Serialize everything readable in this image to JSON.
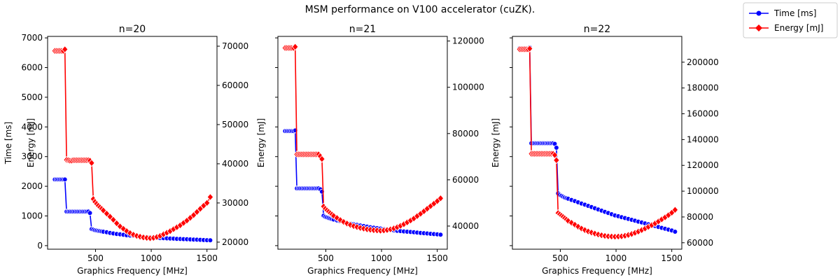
{
  "figure": {
    "suptitle": "MSM performance on V100 accelerator (cuZK).",
    "legend": {
      "placement": "top-right",
      "entries": [
        {
          "label": "Time [ms]",
          "color": "#0000ff",
          "marker": "circle"
        },
        {
          "label": "Energy [mJ]",
          "color": "#ff0000",
          "marker": "diamond"
        }
      ]
    }
  },
  "chart_data": [
    {
      "type": "line",
      "title": "n=20",
      "xlabel": "Graphics Frequency [MHz]",
      "ylabel_left": "Time [ms]",
      "ylabel_right": "Energy [mJ]",
      "xlim": [
        70,
        1590
      ],
      "xticks": [
        500,
        1000,
        1500
      ],
      "y_left": {
        "lim": [
          -120,
          7050
        ],
        "ticks": [
          0,
          1000,
          2000,
          3000,
          4000,
          5000,
          6000,
          7000
        ],
        "show_labels": true
      },
      "y_right": {
        "lim": [
          18200,
          72500
        ],
        "ticks": [
          20000,
          30000,
          40000,
          50000,
          60000,
          70000
        ],
        "show_labels": true
      },
      "series": [
        {
          "name": "Time [ms]",
          "axis": "left",
          "color": "#0000ff",
          "marker": "circle",
          "x": [
            135,
            150,
            165,
            180,
            195,
            210,
            225,
            240,
            255,
            270,
            285,
            300,
            315,
            330,
            345,
            360,
            375,
            390,
            405,
            420,
            435,
            450,
            465,
            480,
            495,
            510,
            525,
            540,
            555,
            570,
            600,
            630,
            660,
            690,
            720,
            750,
            780,
            810,
            840,
            870,
            900,
            930,
            960,
            990,
            1020,
            1050,
            1080,
            1110,
            1140,
            1170,
            1200,
            1230,
            1260,
            1290,
            1320,
            1350,
            1380,
            1410,
            1440,
            1470,
            1500,
            1530
          ],
          "y": [
            2230,
            2230,
            2230,
            2230,
            2230,
            2230,
            2230,
            1150,
            1150,
            1150,
            1150,
            1150,
            1150,
            1150,
            1150,
            1150,
            1150,
            1150,
            1150,
            1150,
            1150,
            1100,
            560,
            540,
            520,
            510,
            500,
            490,
            480,
            470,
            450,
            430,
            410,
            395,
            380,
            365,
            350,
            340,
            330,
            320,
            310,
            300,
            290,
            280,
            270,
            260,
            255,
            250,
            245,
            240,
            235,
            230,
            225,
            220,
            215,
            210,
            205,
            200,
            195,
            190,
            185,
            180
          ]
        },
        {
          "name": "Energy [mJ]",
          "axis": "right",
          "color": "#ff0000",
          "marker": "diamond",
          "x": [
            135,
            150,
            165,
            180,
            195,
            210,
            225,
            240,
            255,
            270,
            285,
            300,
            315,
            330,
            345,
            360,
            375,
            390,
            405,
            420,
            435,
            450,
            465,
            480,
            495,
            510,
            525,
            540,
            555,
            570,
            600,
            630,
            660,
            690,
            720,
            750,
            780,
            810,
            840,
            870,
            900,
            930,
            960,
            990,
            1020,
            1050,
            1080,
            1110,
            1140,
            1170,
            1200,
            1230,
            1260,
            1290,
            1320,
            1350,
            1380,
            1410,
            1440,
            1470,
            1500,
            1530
          ],
          "y": [
            68800,
            68800,
            68800,
            68800,
            68800,
            68800,
            69200,
            41000,
            40900,
            40800,
            40800,
            40900,
            40900,
            40900,
            40900,
            40900,
            40900,
            40900,
            40900,
            40900,
            40900,
            40800,
            40200,
            31000,
            30300,
            29800,
            29300,
            28900,
            28500,
            28100,
            27300,
            26500,
            25700,
            24800,
            24000,
            23400,
            22800,
            22300,
            21900,
            21600,
            21400,
            21200,
            21100,
            21000,
            21100,
            21300,
            21600,
            22000,
            22400,
            22800,
            23300,
            23800,
            24300,
            24900,
            25500,
            26200,
            26900,
            27700,
            28500,
            29300,
            30000,
            31500
          ]
        }
      ]
    },
    {
      "type": "line",
      "title": "n=21",
      "xlabel": "Graphics Frequency [MHz]",
      "ylabel_left": "",
      "ylabel_right": "Energy [mJ]",
      "xlim": [
        70,
        1590
      ],
      "xticks": [
        500,
        1000,
        1500
      ],
      "y_left": {
        "lim": [
          -120,
          7050
        ],
        "ticks": [
          0,
          1000,
          2000,
          3000,
          4000,
          5000,
          6000,
          7000
        ],
        "show_labels": false
      },
      "y_right": {
        "lim": [
          30000,
          122000
        ],
        "ticks": [
          40000,
          60000,
          80000,
          100000,
          120000
        ],
        "show_labels": true
      },
      "series": [
        {
          "name": "Time [ms]",
          "axis": "left",
          "color": "#0000ff",
          "marker": "circle",
          "x": [
            135,
            150,
            165,
            180,
            195,
            210,
            225,
            240,
            255,
            270,
            285,
            300,
            315,
            330,
            345,
            360,
            375,
            390,
            405,
            420,
            435,
            450,
            465,
            480,
            495,
            510,
            525,
            540,
            555,
            570,
            600,
            630,
            660,
            690,
            720,
            750,
            780,
            810,
            840,
            870,
            900,
            930,
            960,
            990,
            1020,
            1050,
            1080,
            1110,
            1140,
            1170,
            1200,
            1230,
            1260,
            1290,
            1320,
            1350,
            1380,
            1410,
            1440,
            1470,
            1500,
            1530
          ],
          "y": [
            3860,
            3860,
            3860,
            3860,
            3860,
            3860,
            3880,
            1930,
            1930,
            1930,
            1930,
            1930,
            1930,
            1930,
            1930,
            1930,
            1930,
            1930,
            1930,
            1930,
            1930,
            1900,
            1820,
            1010,
            970,
            950,
            930,
            910,
            895,
            880,
            850,
            820,
            790,
            760,
            740,
            720,
            700,
            680,
            660,
            640,
            620,
            605,
            590,
            575,
            560,
            545,
            530,
            515,
            500,
            490,
            480,
            470,
            460,
            450,
            440,
            430,
            420,
            410,
            400,
            390,
            380,
            370
          ]
        },
        {
          "name": "Energy [mJ]",
          "axis": "right",
          "color": "#ff0000",
          "marker": "diamond",
          "x": [
            135,
            150,
            165,
            180,
            195,
            210,
            225,
            240,
            255,
            270,
            285,
            300,
            315,
            330,
            345,
            360,
            375,
            390,
            405,
            420,
            435,
            450,
            465,
            480,
            495,
            510,
            525,
            540,
            555,
            570,
            600,
            630,
            660,
            690,
            720,
            750,
            780,
            810,
            840,
            870,
            900,
            930,
            960,
            990,
            1020,
            1050,
            1080,
            1110,
            1140,
            1170,
            1200,
            1230,
            1260,
            1290,
            1320,
            1350,
            1380,
            1410,
            1440,
            1470,
            1500,
            1530
          ],
          "y": [
            117000,
            117000,
            117000,
            117000,
            117000,
            117000,
            117500,
            71000,
            71000,
            71000,
            71000,
            71000,
            71000,
            71000,
            71000,
            71000,
            71000,
            71000,
            71000,
            71000,
            71000,
            70200,
            69000,
            48500,
            47500,
            46800,
            46200,
            45600,
            45000,
            44400,
            43500,
            42600,
            41800,
            41100,
            40500,
            40000,
            39600,
            39200,
            38900,
            38600,
            38400,
            38200,
            38100,
            38000,
            38100,
            38300,
            38600,
            39000,
            39500,
            40100,
            40800,
            41600,
            42400,
            43300,
            44300,
            45300,
            46400,
            47500,
            48600,
            49700,
            50800,
            52000
          ]
        }
      ]
    },
    {
      "type": "line",
      "title": "n=22",
      "xlabel": "Graphics Frequency [MHz]",
      "ylabel_left": "",
      "ylabel_right": "Energy [mJ]",
      "xlim": [
        70,
        1590
      ],
      "xticks": [
        500,
        1000,
        1500
      ],
      "y_left": {
        "lim": [
          -120,
          7050
        ],
        "ticks": [
          0,
          1000,
          2000,
          3000,
          4000,
          5000,
          6000,
          7000
        ],
        "show_labels": false
      },
      "y_right": {
        "lim": [
          55000,
          220000
        ],
        "ticks": [
          60000,
          80000,
          100000,
          120000,
          140000,
          160000,
          180000,
          200000
        ],
        "show_labels": true
      },
      "series": [
        {
          "name": "Time [ms]",
          "axis": "left",
          "color": "#0000ff",
          "marker": "circle",
          "x": [
            135,
            150,
            165,
            180,
            195,
            210,
            225,
            240,
            255,
            270,
            285,
            300,
            315,
            330,
            345,
            360,
            375,
            390,
            405,
            420,
            435,
            450,
            465,
            480,
            495,
            510,
            525,
            540,
            555,
            570,
            600,
            630,
            660,
            690,
            720,
            750,
            780,
            810,
            840,
            870,
            900,
            930,
            960,
            990,
            1020,
            1050,
            1080,
            1110,
            1140,
            1170,
            1200,
            1230,
            1260,
            1290,
            1320,
            1350,
            1380,
            1410,
            1440,
            1470,
            1500,
            1530
          ],
          "y": [
            6650,
            6650,
            6650,
            6650,
            6650,
            6650,
            6680,
            3450,
            3450,
            3450,
            3450,
            3450,
            3450,
            3450,
            3450,
            3450,
            3450,
            3450,
            3450,
            3450,
            3450,
            3430,
            3300,
            1760,
            1710,
            1680,
            1650,
            1620,
            1600,
            1580,
            1540,
            1500,
            1460,
            1420,
            1380,
            1340,
            1300,
            1260,
            1220,
            1180,
            1140,
            1100,
            1060,
            1020,
            990,
            960,
            930,
            900,
            870,
            840,
            810,
            780,
            750,
            720,
            690,
            660,
            630,
            600,
            570,
            540,
            510,
            470
          ]
        },
        {
          "name": "Energy [mJ]",
          "axis": "right",
          "color": "#ff0000",
          "marker": "diamond",
          "x": [
            135,
            150,
            165,
            180,
            195,
            210,
            225,
            240,
            255,
            270,
            285,
            300,
            315,
            330,
            345,
            360,
            375,
            390,
            405,
            420,
            435,
            450,
            465,
            480,
            495,
            510,
            525,
            540,
            555,
            570,
            600,
            630,
            660,
            690,
            720,
            750,
            780,
            810,
            840,
            870,
            900,
            930,
            960,
            990,
            1020,
            1050,
            1080,
            1110,
            1140,
            1170,
            1200,
            1230,
            1260,
            1290,
            1320,
            1350,
            1380,
            1410,
            1440,
            1470,
            1500,
            1530
          ],
          "y": [
            210000,
            210000,
            210000,
            210000,
            210000,
            210000,
            210500,
            129000,
            129000,
            129000,
            129000,
            129000,
            129000,
            129000,
            129000,
            129000,
            129000,
            129000,
            129000,
            129000,
            129000,
            128000,
            124000,
            83000,
            82000,
            81000,
            80000,
            79000,
            78000,
            77000,
            75500,
            74000,
            72500,
            71000,
            69800,
            68800,
            67900,
            67100,
            66400,
            65800,
            65300,
            65000,
            64800,
            64700,
            64800,
            65000,
            65400,
            66000,
            66800,
            67700,
            68700,
            69800,
            71000,
            72300,
            73600,
            75000,
            76500,
            78100,
            79700,
            81400,
            83300,
            85500
          ]
        }
      ]
    }
  ]
}
